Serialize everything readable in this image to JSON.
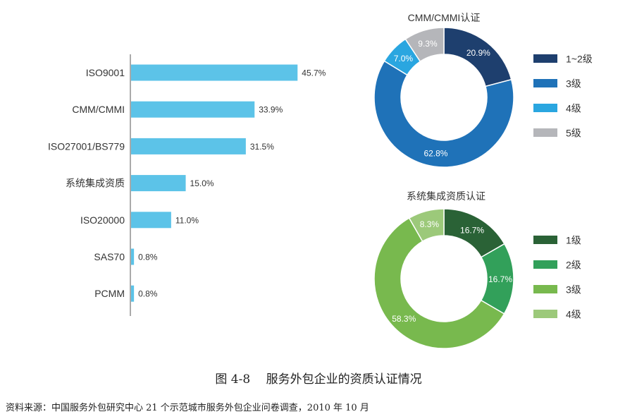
{
  "chart_data": [
    {
      "type": "bar",
      "orientation": "horizontal",
      "categories": [
        "ISO9001",
        "CMM/CMMI",
        "ISO27001/BS779",
        "系统集成资质",
        "ISO20000",
        "SAS70",
        "PCMM"
      ],
      "values": [
        45.7,
        33.9,
        31.5,
        15.0,
        11.0,
        0.8,
        0.8
      ],
      "value_labels": [
        "45.7%",
        "33.9%",
        "31.5%",
        "15.0%",
        "11.0%",
        "0.8%",
        "0.8%"
      ],
      "bar_color": "#5cc3e8",
      "xlim": [
        0,
        100
      ],
      "grid": false
    },
    {
      "type": "pie",
      "style": "donut",
      "title": "CMM/CMMI认证",
      "labels": [
        "1~2级",
        "3级",
        "4级",
        "5级"
      ],
      "values": [
        20.9,
        62.8,
        7.0,
        9.3
      ],
      "value_labels": [
        "20.9%",
        "62.8%",
        "7.0%",
        "9.3%"
      ],
      "colors": [
        "#1e3f6e",
        "#1f72b8",
        "#2aa6e0",
        "#b5b6ba"
      ],
      "legend_position": "right"
    },
    {
      "type": "pie",
      "style": "donut",
      "title": "系统集成资质认证",
      "labels": [
        "1级",
        "2级",
        "3级",
        "4级"
      ],
      "values": [
        16.7,
        16.7,
        58.3,
        8.3
      ],
      "value_labels": [
        "16.7%",
        "16.7%",
        "58.3%",
        "8.3%"
      ],
      "colors": [
        "#2a6236",
        "#32a05a",
        "#78b94e",
        "#9cc97a"
      ],
      "legend_position": "right"
    }
  ],
  "caption": "图 4-8　 服务外包企业的资质认证情况",
  "source": "资料来源：中国服务外包研究中心 21 个示范城市服务外包企业问卷调查，2010 年 10 月"
}
